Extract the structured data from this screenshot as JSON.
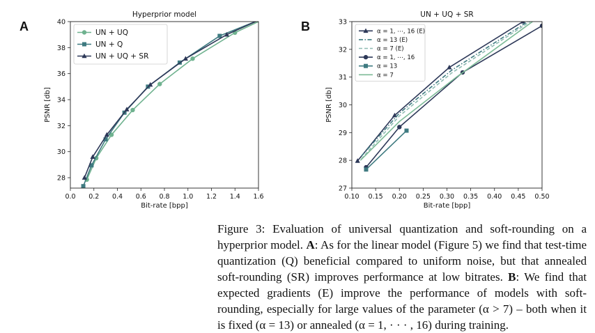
{
  "figure": {
    "panels": [
      {
        "letter": "A",
        "chart_data": {
          "type": "line",
          "title": "Hyperprior model",
          "xlabel": "Bit-rate [bpp]",
          "ylabel": "PSNR [db]",
          "xlim": [
            0.0,
            1.6
          ],
          "ylim": [
            27.2,
            40.0
          ],
          "xticks": [
            "0.0",
            "0.2",
            "0.4",
            "0.6",
            "0.8",
            "1.0",
            "1.2",
            "1.4",
            "1.6"
          ],
          "yticks": [
            "28",
            "30",
            "32",
            "34",
            "36",
            "38",
            "40"
          ],
          "grid": false,
          "legend_position": "top-left",
          "series": [
            {
              "name": "UN + UQ",
              "color": "#6fb28f",
              "marker": "circle",
              "dash": "solid",
              "points": [
                [
                  0.14,
                  27.85
                ],
                [
                  0.22,
                  29.5
                ],
                [
                  0.35,
                  31.3
                ],
                [
                  0.53,
                  33.2
                ],
                [
                  0.76,
                  35.2
                ],
                [
                  1.04,
                  37.15
                ],
                [
                  1.4,
                  39.15
                ],
                [
                  1.6,
                  40.0
                ]
              ]
            },
            {
              "name": "UN + Q",
              "color": "#3e7a80",
              "marker": "square",
              "dash": "solid",
              "points": [
                [
                  0.11,
                  27.35
                ],
                [
                  0.18,
                  28.95
                ],
                [
                  0.3,
                  30.95
                ],
                [
                  0.46,
                  33.0
                ],
                [
                  0.66,
                  35.0
                ],
                [
                  0.93,
                  36.85
                ],
                [
                  1.27,
                  38.9
                ],
                [
                  1.6,
                  40.1
                ]
              ]
            },
            {
              "name": "UN + UQ + SR",
              "color": "#2d3858",
              "marker": "triangle",
              "dash": "solid",
              "points": [
                [
                  0.12,
                  28.0
                ],
                [
                  0.19,
                  29.6
                ],
                [
                  0.31,
                  31.3
                ],
                [
                  0.48,
                  33.25
                ],
                [
                  0.68,
                  35.15
                ],
                [
                  0.98,
                  37.15
                ],
                [
                  1.33,
                  39.0
                ],
                [
                  1.6,
                  40.1
                ]
              ]
            }
          ]
        }
      },
      {
        "letter": "B",
        "chart_data": {
          "type": "line",
          "title": "UN + UQ + SR",
          "xlabel": "Bit-rate [bpp]",
          "ylabel": "PSNR [db]",
          "xlim": [
            0.1,
            0.5
          ],
          "ylim": [
            27.0,
            33.0
          ],
          "xticks": [
            "0.10",
            "0.15",
            "0.20",
            "0.25",
            "0.30",
            "0.35",
            "0.40",
            "0.45",
            "0.50"
          ],
          "yticks": [
            "27",
            "28",
            "29",
            "30",
            "31",
            "32",
            "33"
          ],
          "grid": false,
          "legend_position": "top-left",
          "series": [
            {
              "name": "α = 1, ⋯, 16 (E)",
              "color": "#2d3858",
              "marker": "triangle",
              "dash": "solid",
              "points": [
                [
                  0.112,
                  27.98
                ],
                [
                  0.19,
                  29.62
                ],
                [
                  0.305,
                  31.35
                ],
                [
                  0.46,
                  33.0
                ]
              ]
            },
            {
              "name": "α = 13 (E)",
              "color": "#3e7a80",
              "marker": "none",
              "dash": "dashdot",
              "points": [
                [
                  0.12,
                  28.15
                ],
                [
                  0.2,
                  29.7
                ],
                [
                  0.31,
                  31.25
                ],
                [
                  0.47,
                  33.0
                ]
              ]
            },
            {
              "name": "α = 7 (E)",
              "color": "#8fbcb2",
              "marker": "none",
              "dash": "dashed",
              "points": [
                [
                  0.12,
                  28.05
                ],
                [
                  0.2,
                  29.6
                ],
                [
                  0.31,
                  31.15
                ],
                [
                  0.475,
                  33.0
                ]
              ]
            },
            {
              "name": "α = 1, ⋯, 16",
              "color": "#2d3858",
              "marker": "circle",
              "dash": "solid",
              "points": [
                [
                  0.13,
                  27.75
                ],
                [
                  0.2,
                  29.2
                ],
                [
                  0.333,
                  31.17
                ],
                [
                  0.5,
                  32.85
                ]
              ]
            },
            {
              "name": "α = 13",
              "color": "#3e7a80",
              "marker": "square",
              "dash": "solid",
              "points": [
                [
                  0.13,
                  27.67
                ],
                [
                  0.215,
                  29.07
                ]
              ]
            },
            {
              "name": "α = 7",
              "color": "#7dbb97",
              "marker": "none",
              "dash": "solid",
              "points": [
                [
                  0.118,
                  28.0
                ],
                [
                  0.2,
                  29.4
                ],
                [
                  0.32,
                  31.0
                ],
                [
                  0.48,
                  33.0
                ]
              ]
            }
          ]
        }
      }
    ]
  },
  "caption": {
    "lead": "Figure 3: Evaluation of universal quantization and soft-rounding on a hyperprior model. ",
    "label_a": "A",
    "text_a": ": As for the linear model (Figure 5) we find that test-time quantization (Q) beneficial compared to uniform noise, but that annealed soft-rounding (SR) improves performance at low bitrates. ",
    "label_b": "B",
    "text_b": ": We find that expected gradients (E) improve the performance of models with soft-rounding, especially for large values of the parameter (α > 7) – both when it is fixed (α = 13) or annealed (α = 1, · · · , 16) during training."
  }
}
